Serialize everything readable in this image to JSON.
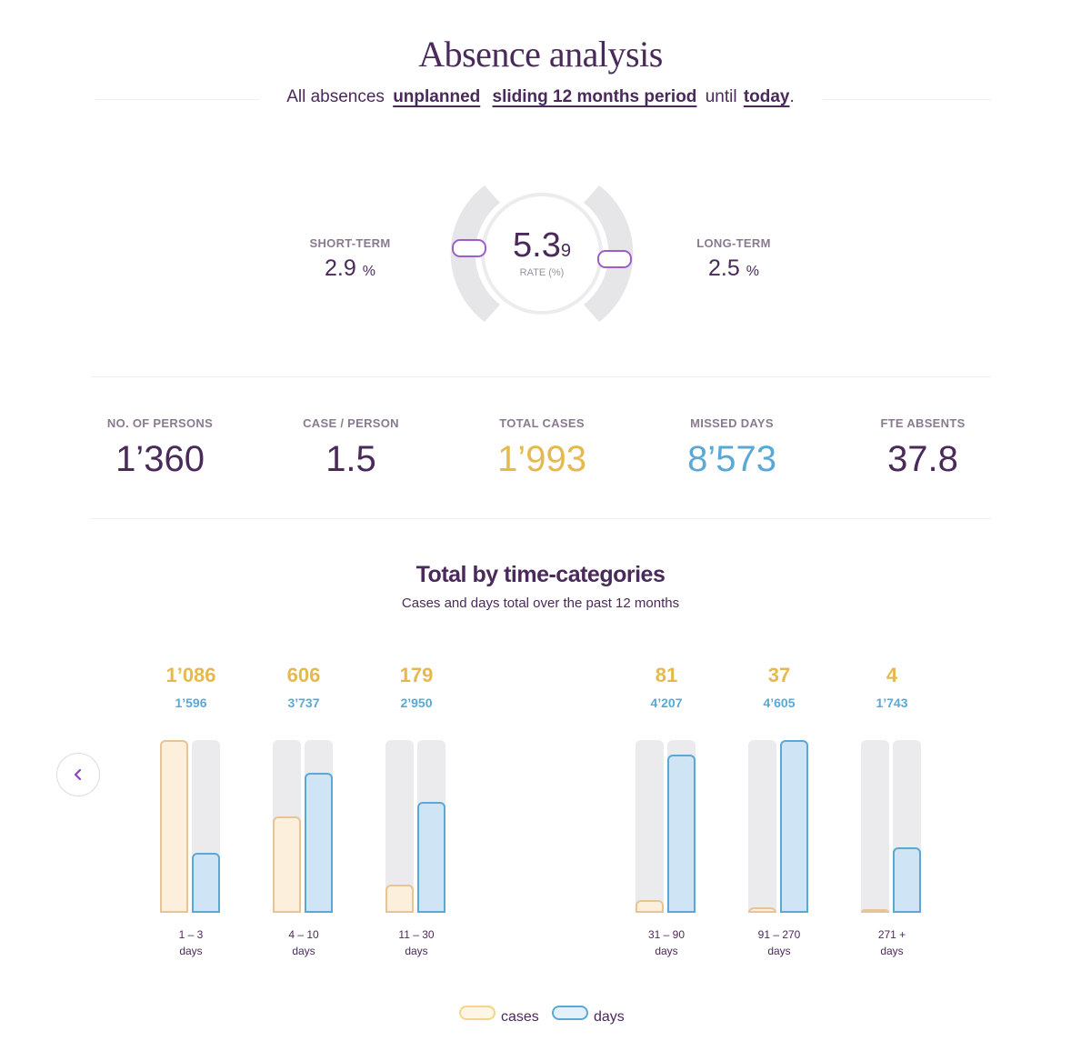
{
  "page": {
    "title": "Absence analysis"
  },
  "filter": {
    "prefix": "All absences",
    "absence_type": "unplanned",
    "period": "sliding 12 months period",
    "until_word": "until",
    "until_value": "today",
    "suffix": "."
  },
  "rate": {
    "value_main": "5.3",
    "value_small": "9",
    "label": "RATE (%)",
    "short_term": {
      "label": "SHORT-TERM",
      "value": "2.9",
      "unit": "%"
    },
    "long_term": {
      "label": "LONG-TERM",
      "value": "2.5",
      "unit": "%"
    }
  },
  "kpis": [
    {
      "label": "NO. OF PERSONS",
      "value": "1’360",
      "color": "#4a2a5a"
    },
    {
      "label": "CASE / PERSON",
      "value": "1.5",
      "color": "#4a2a5a"
    },
    {
      "label": "TOTAL CASES",
      "value": "1’993",
      "color": "#e6b94e"
    },
    {
      "label": "MISSED DAYS",
      "value": "8’573",
      "color": "#5ba8d4"
    },
    {
      "label": "FTE ABSENTS",
      "value": "37.8",
      "color": "#4a2a5a"
    }
  ],
  "section": {
    "title": "Total by time-categories",
    "subtitle": "Cases and days total over the past 12 months"
  },
  "chart_data": {
    "type": "bar",
    "categories": [
      "1 – 3 days",
      "4 – 10 days",
      "11 – 30 days",
      "31 – 90 days",
      "91 – 270 days",
      "271 + days"
    ],
    "range_labels": [
      {
        "range": "1 – 3",
        "unit": "days"
      },
      {
        "range": "4 – 10",
        "unit": "days"
      },
      {
        "range": "11 – 30",
        "unit": "days"
      },
      {
        "range": "31 – 90",
        "unit": "days"
      },
      {
        "range": "91 – 270",
        "unit": "days"
      },
      {
        "range": "271 +",
        "unit": "days"
      }
    ],
    "series": [
      {
        "name": "cases",
        "values": [
          1086,
          606,
          179,
          81,
          37,
          4
        ],
        "labels": [
          "1’086",
          "606",
          "179",
          "81",
          "37",
          "4"
        ],
        "color": "#e6b94e"
      },
      {
        "name": "days",
        "values": [
          1596,
          3737,
          2950,
          4207,
          4605,
          1743
        ],
        "labels": [
          "1’596",
          "3’737",
          "2’950",
          "4’207",
          "4’605",
          "1’743"
        ],
        "color": "#5ba8d4"
      }
    ],
    "legend": [
      "cases",
      "days"
    ],
    "legend_position": "bottom-center"
  }
}
